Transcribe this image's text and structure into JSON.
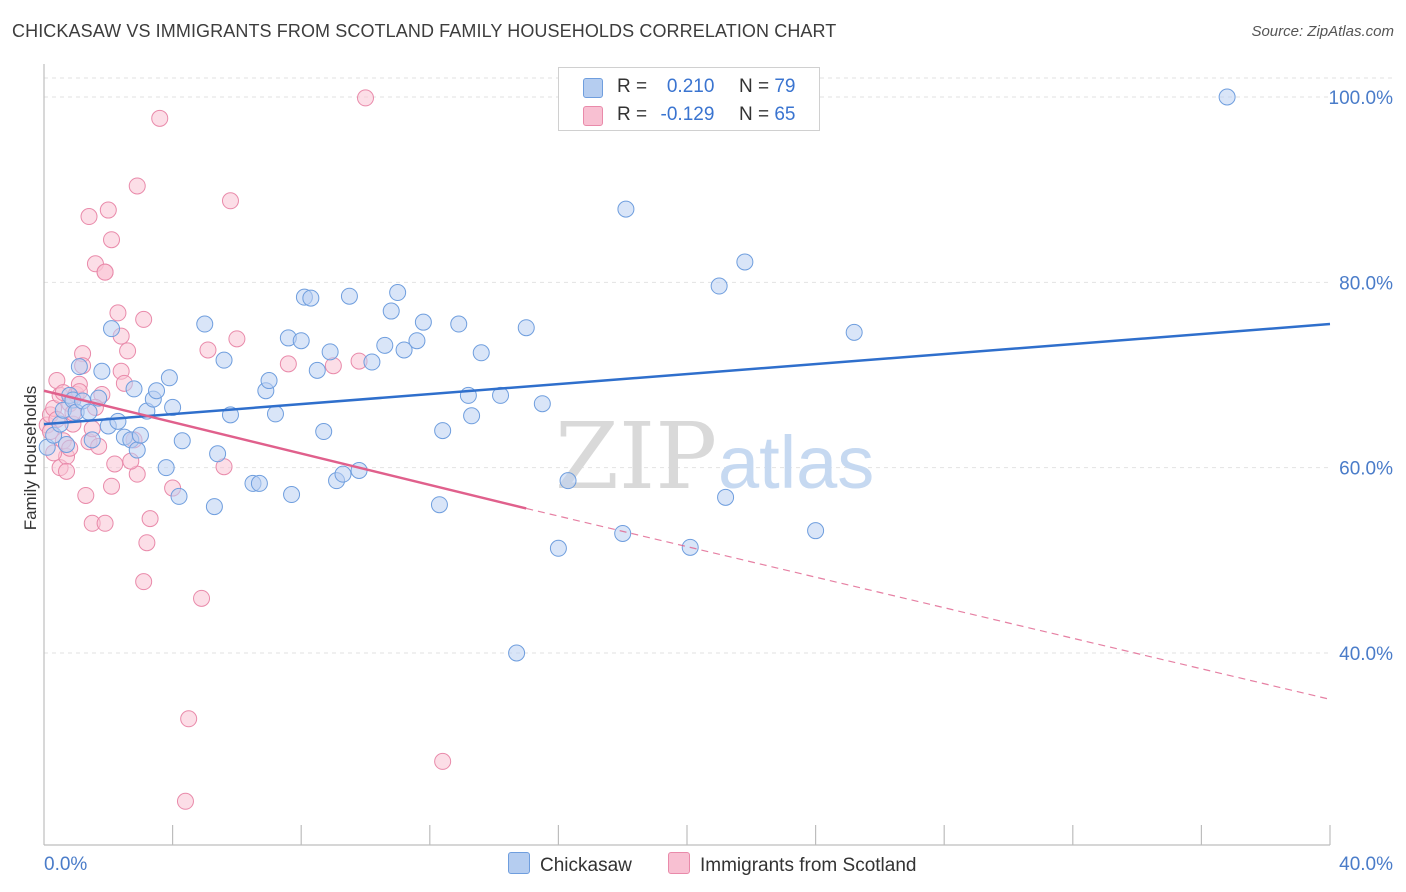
{
  "title": "CHICKASAW VS IMMIGRANTS FROM SCOTLAND FAMILY HOUSEHOLDS CORRELATION CHART",
  "source": "Source: ZipAtlas.com",
  "watermark": {
    "zip": "ZIP",
    "atlas": "atlas"
  },
  "legend_stats": [
    {
      "r_label": "R =",
      "r_value": "0.210",
      "n_label": "N =",
      "n_value": "79",
      "color": "#b5cdf0"
    },
    {
      "r_label": "R =",
      "r_value": "-0.129",
      "n_label": "N =",
      "n_value": "65",
      "color": "#f8c0d2"
    }
  ],
  "colors": {
    "chickasaw_fill": "#b9d0f2",
    "chickasaw_stroke": "#6f9ede",
    "chickasaw_line": "#2f6fcc",
    "scotland_fill": "#f9c3d4",
    "scotland_stroke": "#e98aaa",
    "scotland_line": "#e0608c",
    "axis_text": "#4a7cc9",
    "grid": "#e2e2e2"
  },
  "chart_data": {
    "type": "scatter",
    "title": "CHICKASAW VS IMMIGRANTS FROM SCOTLAND FAMILY HOUSEHOLDS CORRELATION CHART",
    "xlabel": "",
    "ylabel": "Family Households",
    "xlim": [
      0,
      40
    ],
    "ylim": [
      20,
      104
    ],
    "x_tick_labels": [
      "0.0%",
      "40.0%"
    ],
    "y_ticks": [
      40,
      60,
      80,
      100
    ],
    "y_tick_labels": [
      "40.0%",
      "60.0%",
      "80.0%",
      "100.0%"
    ],
    "grid": true,
    "legend_position": "top-center",
    "series": [
      {
        "name": "Chickasaw",
        "points": [
          [
            0.1,
            62.2
          ],
          [
            0.3,
            63.5
          ],
          [
            0.5,
            64.7
          ],
          [
            0.6,
            66.2
          ],
          [
            0.7,
            62.5
          ],
          [
            0.8,
            67.8
          ],
          [
            0.9,
            67.3
          ],
          [
            1.0,
            66.0
          ],
          [
            1.1,
            70.9
          ],
          [
            1.2,
            67.2
          ],
          [
            1.4,
            66.0
          ],
          [
            1.5,
            63.0
          ],
          [
            1.7,
            67.5
          ],
          [
            1.8,
            70.4
          ],
          [
            2.0,
            64.5
          ],
          [
            2.1,
            75.0
          ],
          [
            2.3,
            65.0
          ],
          [
            2.5,
            63.3
          ],
          [
            2.7,
            63.0
          ],
          [
            2.8,
            68.5
          ],
          [
            2.9,
            61.9
          ],
          [
            3.0,
            63.5
          ],
          [
            3.2,
            66.1
          ],
          [
            3.4,
            67.4
          ],
          [
            3.5,
            68.3
          ],
          [
            3.8,
            60.0
          ],
          [
            3.9,
            69.7
          ],
          [
            4.0,
            66.5
          ],
          [
            4.2,
            56.9
          ],
          [
            4.3,
            62.9
          ],
          [
            5.0,
            75.5
          ],
          [
            5.3,
            55.8
          ],
          [
            5.4,
            61.5
          ],
          [
            5.6,
            71.6
          ],
          [
            5.8,
            65.7
          ],
          [
            6.5,
            58.3
          ],
          [
            6.7,
            58.3
          ],
          [
            6.9,
            68.3
          ],
          [
            7.0,
            69.4
          ],
          [
            7.2,
            65.8
          ],
          [
            7.6,
            74.0
          ],
          [
            7.7,
            57.1
          ],
          [
            8.0,
            73.7
          ],
          [
            8.1,
            78.4
          ],
          [
            8.3,
            78.3
          ],
          [
            8.5,
            70.5
          ],
          [
            8.7,
            63.9
          ],
          [
            8.9,
            72.5
          ],
          [
            9.1,
            58.6
          ],
          [
            9.3,
            59.3
          ],
          [
            9.5,
            78.5
          ],
          [
            9.8,
            59.7
          ],
          [
            10.2,
            71.4
          ],
          [
            10.6,
            73.2
          ],
          [
            10.8,
            76.9
          ],
          [
            11.0,
            78.9
          ],
          [
            11.2,
            72.7
          ],
          [
            11.6,
            73.7
          ],
          [
            11.8,
            75.7
          ],
          [
            12.3,
            56.0
          ],
          [
            12.4,
            64.0
          ],
          [
            12.9,
            75.5
          ],
          [
            13.2,
            67.8
          ],
          [
            13.3,
            65.6
          ],
          [
            13.6,
            72.4
          ],
          [
            14.2,
            67.8
          ],
          [
            14.7,
            40.0
          ],
          [
            15.0,
            75.1
          ],
          [
            15.5,
            66.9
          ],
          [
            16.0,
            51.3
          ],
          [
            16.3,
            58.6
          ],
          [
            18.0,
            52.9
          ],
          [
            18.1,
            87.9
          ],
          [
            20.1,
            51.4
          ],
          [
            21.0,
            79.6
          ],
          [
            21.2,
            56.8
          ],
          [
            21.8,
            82.2
          ],
          [
            24.0,
            53.2
          ],
          [
            25.2,
            74.6
          ],
          [
            36.8,
            100.0
          ]
        ],
        "trend": [
          [
            0.0,
            64.7
          ],
          [
            40.0,
            75.5
          ]
        ]
      },
      {
        "name": "Immigrants from Scotland",
        "points": [
          [
            0.1,
            64.6
          ],
          [
            0.2,
            65.7
          ],
          [
            0.3,
            66.4
          ],
          [
            0.4,
            69.4
          ],
          [
            0.5,
            60.0
          ],
          [
            0.5,
            67.8
          ],
          [
            0.6,
            68.1
          ],
          [
            0.6,
            62.9
          ],
          [
            0.7,
            61.2
          ],
          [
            0.8,
            66.9
          ],
          [
            0.9,
            64.7
          ],
          [
            1.0,
            67.9
          ],
          [
            1.1,
            69.0
          ],
          [
            1.2,
            72.3
          ],
          [
            1.2,
            71.0
          ],
          [
            1.3,
            57.0
          ],
          [
            1.4,
            87.1
          ],
          [
            1.4,
            62.8
          ],
          [
            1.5,
            54.0
          ],
          [
            1.6,
            82.0
          ],
          [
            1.7,
            62.3
          ],
          [
            1.8,
            67.9
          ],
          [
            1.9,
            54.0
          ],
          [
            1.9,
            81.1
          ],
          [
            1.9,
            81.1
          ],
          [
            2.0,
            87.8
          ],
          [
            2.1,
            84.6
          ],
          [
            2.1,
            58.0
          ],
          [
            2.2,
            60.4
          ],
          [
            2.3,
            76.7
          ],
          [
            2.4,
            74.2
          ],
          [
            2.4,
            70.4
          ],
          [
            2.5,
            69.1
          ],
          [
            2.6,
            72.6
          ],
          [
            2.8,
            63.0
          ],
          [
            2.9,
            59.3
          ],
          [
            2.9,
            90.4
          ],
          [
            3.1,
            76.0
          ],
          [
            3.1,
            47.7
          ],
          [
            3.2,
            51.9
          ],
          [
            3.3,
            54.5
          ],
          [
            3.6,
            97.7
          ],
          [
            4.0,
            57.8
          ],
          [
            4.5,
            32.9
          ],
          [
            4.4,
            24.0
          ],
          [
            4.9,
            45.9
          ],
          [
            5.1,
            72.7
          ],
          [
            5.6,
            60.1
          ],
          [
            5.8,
            88.8
          ],
          [
            6.0,
            73.9
          ],
          [
            7.6,
            71.2
          ],
          [
            9.0,
            71.0
          ],
          [
            9.8,
            71.5
          ],
          [
            10.0,
            99.9
          ],
          [
            12.4,
            28.3
          ],
          [
            0.4,
            65.2
          ],
          [
            0.8,
            62.1
          ],
          [
            1.1,
            68.2
          ],
          [
            1.6,
            66.5
          ],
          [
            0.3,
            61.6
          ],
          [
            0.2,
            63.9
          ],
          [
            0.7,
            59.6
          ],
          [
            2.7,
            60.7
          ],
          [
            1.5,
            64.2
          ],
          [
            0.9,
            65.9
          ]
        ],
        "trend": [
          [
            0.0,
            68.3
          ],
          [
            15.0,
            55.6
          ]
        ],
        "trend_dashed": [
          [
            15.0,
            55.6
          ],
          [
            40.0,
            35.0
          ]
        ]
      }
    ]
  },
  "bottom_legend": [
    {
      "label": "Chickasaw",
      "color": "#b5cdf0"
    },
    {
      "label": "Immigrants from Scotland",
      "color": "#f8c0d2"
    }
  ]
}
